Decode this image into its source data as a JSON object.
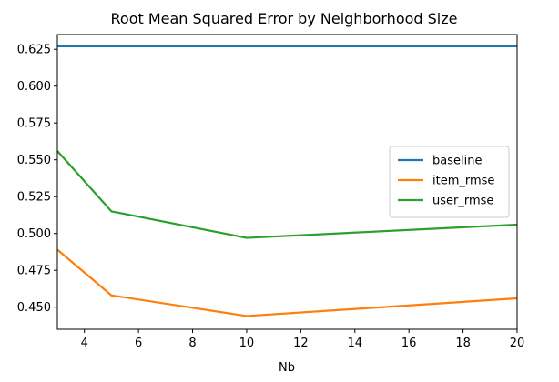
{
  "chart_data": {
    "type": "line",
    "title": "Root Mean Squared Error by Neighborhood Size",
    "xlabel": "Nb",
    "ylabel": "",
    "xlim": [
      3,
      20
    ],
    "ylim": [
      0.435,
      0.635
    ],
    "xticks": [
      4,
      6,
      8,
      10,
      12,
      14,
      16,
      18,
      20
    ],
    "xtick_labels": [
      "4",
      "6",
      "8",
      "10",
      "12",
      "14",
      "16",
      "18",
      "20"
    ],
    "yticks": [
      0.45,
      0.475,
      0.5,
      0.525,
      0.55,
      0.575,
      0.6,
      0.625
    ],
    "ytick_labels": [
      "0.450",
      "0.475",
      "0.500",
      "0.525",
      "0.550",
      "0.575",
      "0.600",
      "0.625"
    ],
    "grid": false,
    "legend_position": "right",
    "series": [
      {
        "name": "baseline",
        "color": "#1f77b4",
        "x": [
          3,
          5,
          10,
          20
        ],
        "y": [
          0.627,
          0.627,
          0.627,
          0.627
        ]
      },
      {
        "name": "item_rmse",
        "color": "#ff7f0e",
        "x": [
          3,
          5,
          10,
          20
        ],
        "y": [
          0.489,
          0.458,
          0.444,
          0.456
        ]
      },
      {
        "name": "user_rmse",
        "color": "#2ca02c",
        "x": [
          3,
          5,
          10,
          20
        ],
        "y": [
          0.556,
          0.515,
          0.497,
          0.506
        ]
      }
    ]
  }
}
